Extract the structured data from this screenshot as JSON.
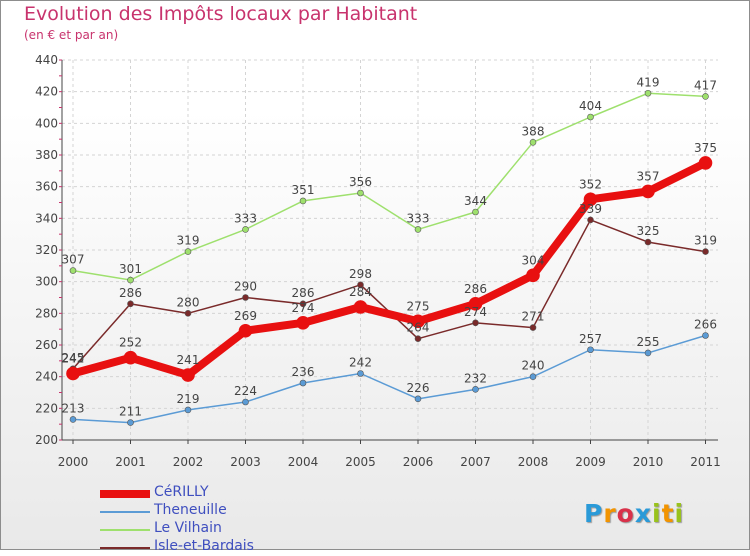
{
  "title": "Evolution des Impôts locaux par Habitant",
  "subtitle": "(en € et par an)",
  "logo": {
    "letters": [
      "P",
      "r",
      "o",
      "x",
      "i",
      "t",
      "i"
    ],
    "colors": [
      "#2a9ad8",
      "#f29400",
      "#d9314a",
      "#2a9ad8",
      "#99c21c",
      "#f29400",
      "#99c21c"
    ]
  },
  "chart_data": {
    "type": "line",
    "x": [
      "2000",
      "2001",
      "2002",
      "2003",
      "2004",
      "2005",
      "2006",
      "2007",
      "2008",
      "2009",
      "2010",
      "2011"
    ],
    "ylim": [
      200,
      440
    ],
    "yticks": [
      200,
      220,
      240,
      260,
      280,
      300,
      320,
      340,
      360,
      380,
      400,
      420,
      440
    ],
    "grid": true,
    "legend_position": "bottom-left",
    "series": [
      {
        "name": "Theneuille",
        "color": "#5b9bd5",
        "values": [
          213,
          211,
          219,
          224,
          236,
          242,
          226,
          232,
          240,
          257,
          255,
          266
        ],
        "labels": [
          "213",
          "211",
          "219",
          "224",
          "236",
          "242",
          "226",
          "232",
          "240",
          "257",
          "255",
          "266"
        ]
      },
      {
        "name": "Le Vilhain",
        "color": "#9ee06d",
        "values": [
          307,
          301,
          319,
          333,
          351,
          356,
          333,
          344,
          388,
          404,
          419,
          417
        ],
        "labels": [
          "307",
          "301",
          "319",
          "333",
          "351",
          "356",
          "333",
          "344",
          "388",
          "404",
          "419",
          "417"
        ]
      },
      {
        "name": "Isle-et-Bardais",
        "color": "#7a2a2a",
        "values": [
          245,
          286,
          280,
          290,
          286,
          298,
          264,
          274,
          271,
          339,
          325,
          319
        ],
        "labels": [
          "245",
          "286",
          "280",
          "290",
          "286",
          "298",
          "264",
          "274",
          "271",
          "339",
          "325",
          "319"
        ]
      },
      {
        "name": "CéRILLY",
        "color": "#e81010",
        "values": [
          242,
          252,
          241,
          269,
          274,
          284,
          275,
          286,
          304,
          352,
          357,
          375
        ],
        "labels": [
          "242",
          "252",
          "241",
          "269",
          "274",
          "284",
          "275",
          "286",
          "304",
          "352",
          "357",
          "375"
        ]
      }
    ],
    "legend_order": [
      "CéRILLY",
      "Theneuille",
      "Le Vilhain",
      "Isle-et-Bardais"
    ]
  }
}
